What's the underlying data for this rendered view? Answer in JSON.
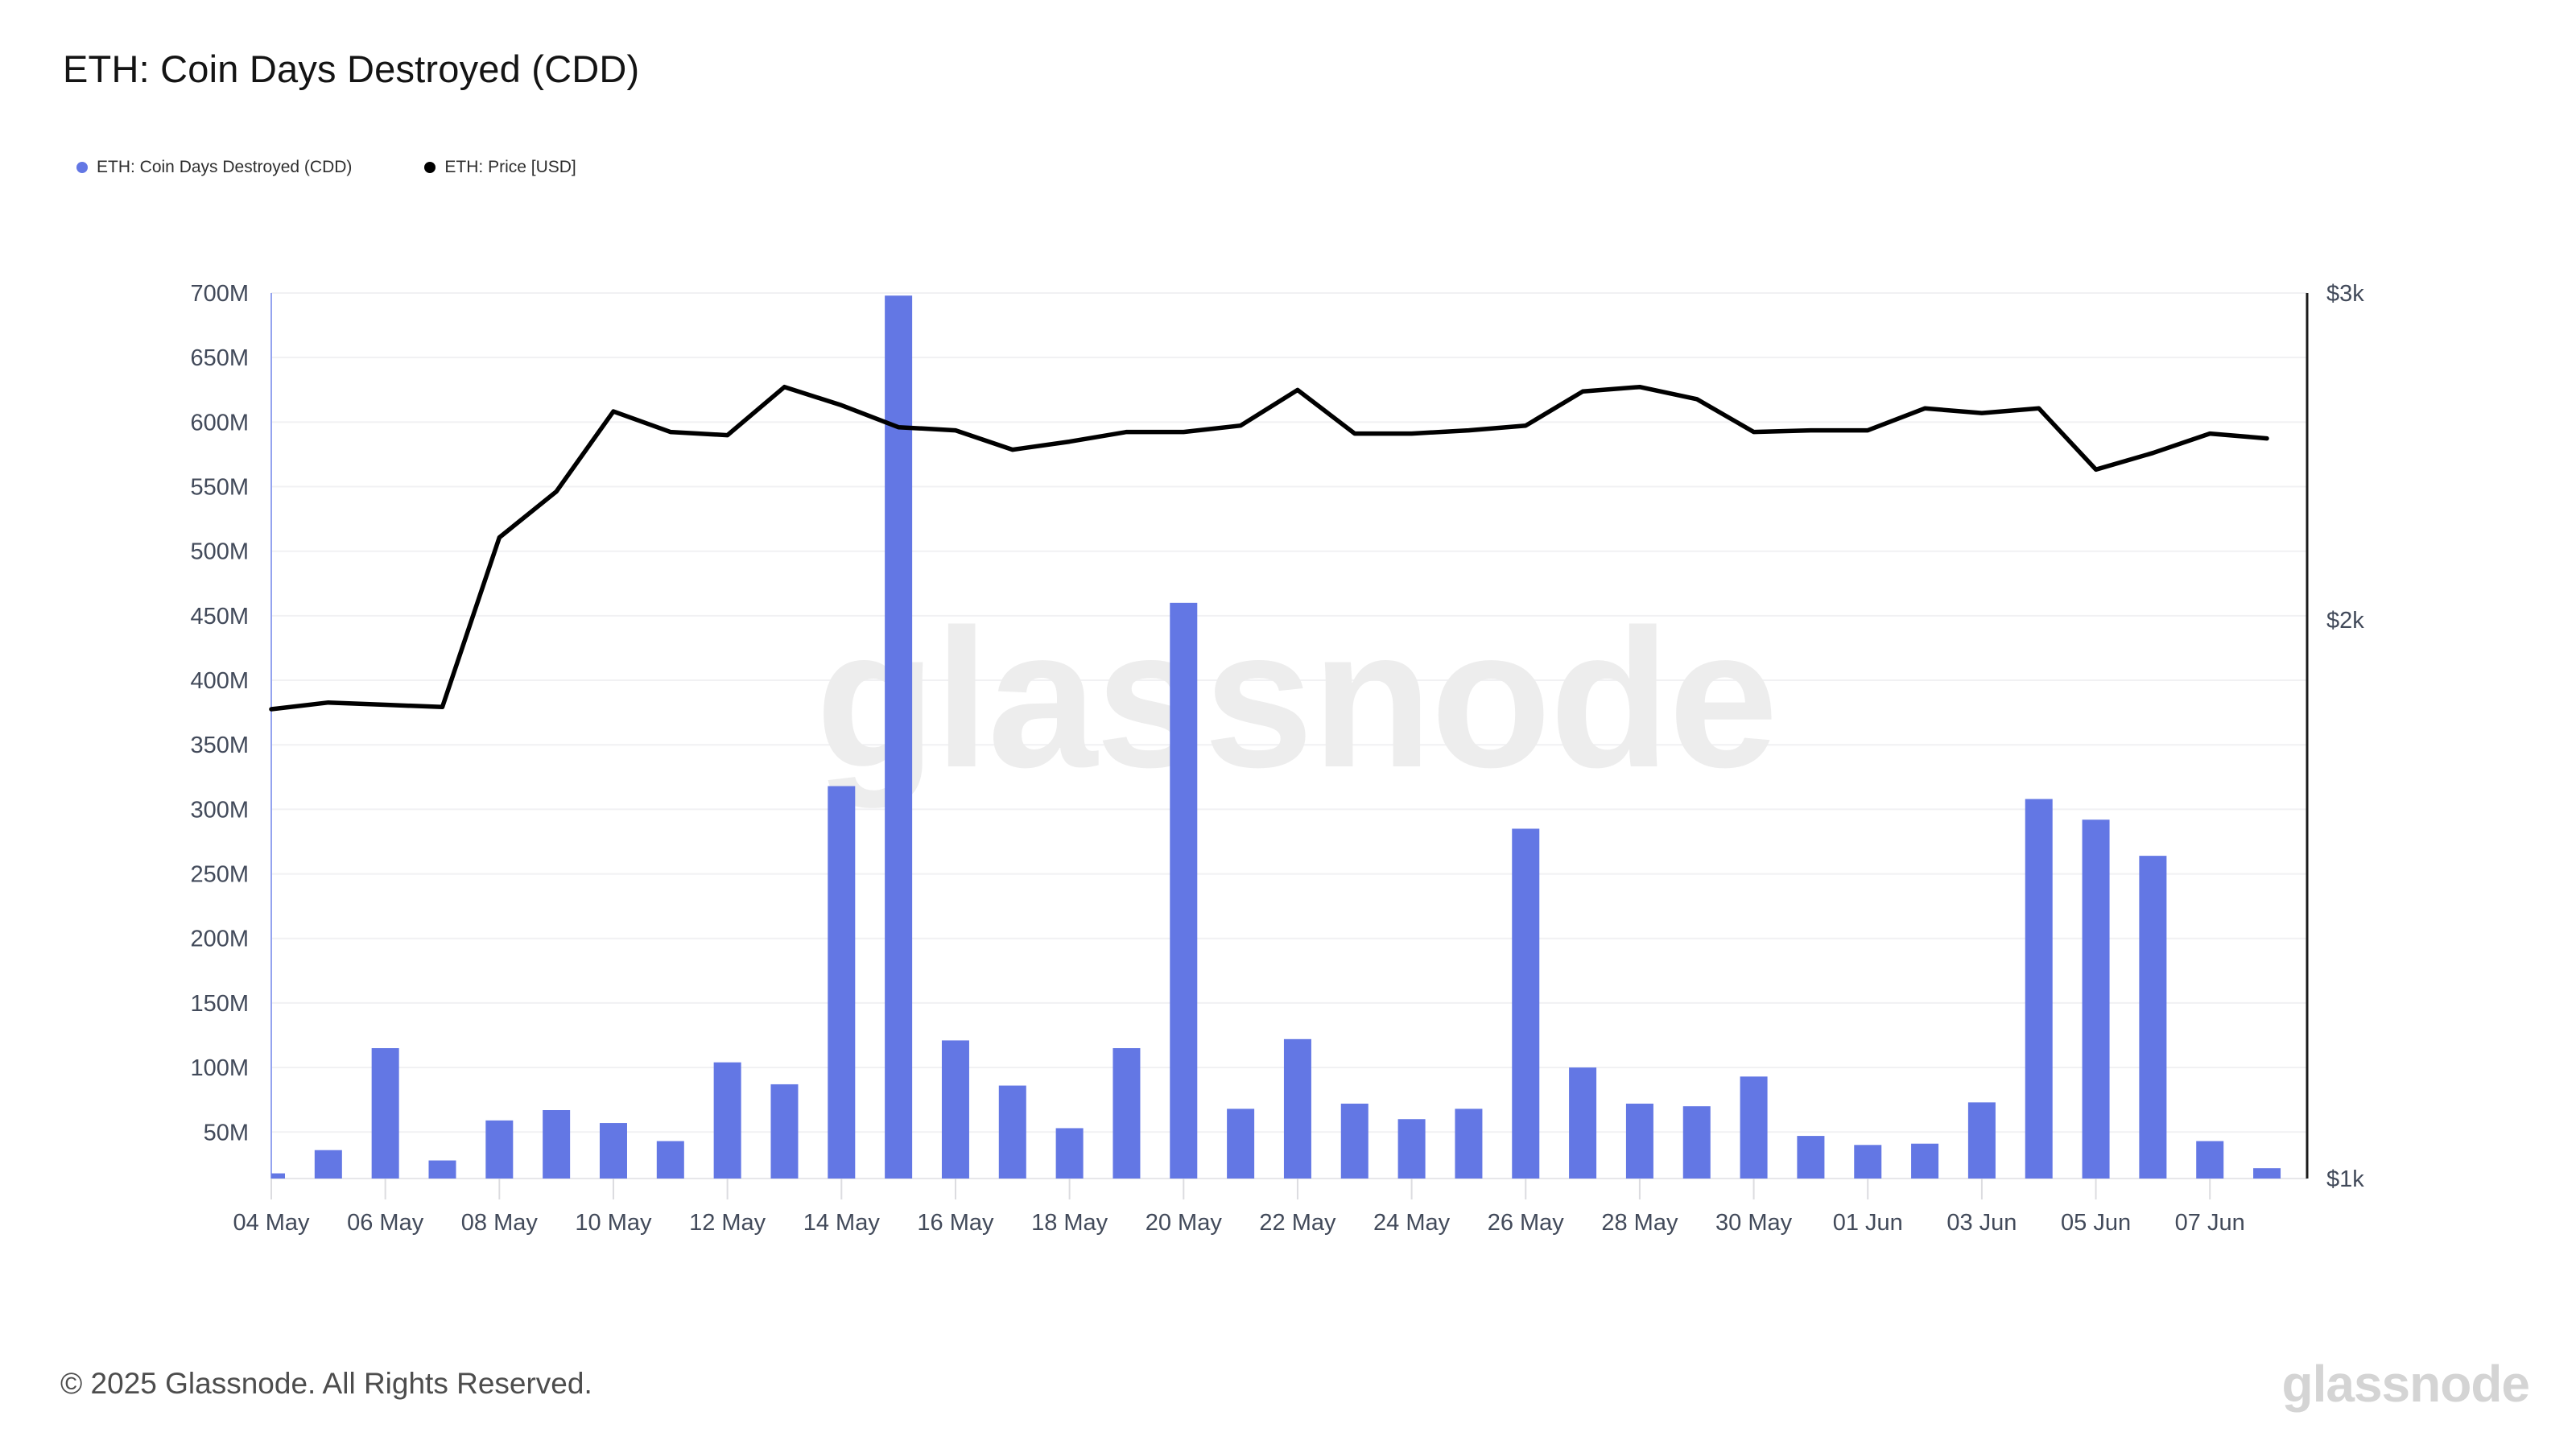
{
  "title": "ETH: Coin Days Destroyed (CDD)",
  "legend": [
    {
      "label": "ETH: Coin Days Destroyed (CDD)",
      "color": "#6377e4"
    },
    {
      "label": "ETH: Price [USD]",
      "color": "#000000"
    }
  ],
  "watermark": "glassnode",
  "footer": {
    "copyright": "© 2025 Glassnode. All Rights Reserved.",
    "brand": "glassnode"
  },
  "chart_data": {
    "type": "bar+line",
    "title": "ETH: Coin Days Destroyed (CDD)",
    "x": [
      "04 May",
      "05 May",
      "06 May",
      "07 May",
      "08 May",
      "09 May",
      "10 May",
      "11 May",
      "12 May",
      "13 May",
      "14 May",
      "15 May",
      "16 May",
      "17 May",
      "18 May",
      "19 May",
      "20 May",
      "21 May",
      "22 May",
      "23 May",
      "24 May",
      "25 May",
      "26 May",
      "27 May",
      "28 May",
      "29 May",
      "30 May",
      "31 May",
      "01 Jun",
      "02 Jun",
      "03 Jun",
      "04 Jun",
      "05 Jun",
      "06 Jun",
      "07 Jun",
      "08 Jun"
    ],
    "series": [
      {
        "name": "ETH: Coin Days Destroyed (CDD)",
        "type": "bar",
        "axis": "left",
        "color": "#6377e4",
        "unit": "M coin-days",
        "values": [
          18,
          36,
          115,
          28,
          59,
          67,
          57,
          43,
          104,
          87,
          318,
          698,
          121,
          86,
          53,
          115,
          460,
          68,
          122,
          72,
          60,
          68,
          285,
          100,
          72,
          70,
          93,
          47,
          40,
          41,
          73,
          308,
          292,
          264,
          43,
          22
        ]
      },
      {
        "name": "ETH: Price [USD]",
        "type": "line",
        "axis": "right",
        "color": "#000000",
        "unit": "USD",
        "values": [
          1790,
          1805,
          1800,
          1795,
          2215,
          2345,
          2590,
          2525,
          2515,
          2670,
          2610,
          2540,
          2530,
          2470,
          2495,
          2525,
          2525,
          2545,
          2660,
          2520,
          2520,
          2530,
          2545,
          2655,
          2670,
          2630,
          2525,
          2530,
          2530,
          2600,
          2585,
          2600,
          2410,
          2460,
          2520,
          2505
        ]
      }
    ],
    "left_axis": {
      "tick_labels": [
        "700M",
        "650M",
        "600M",
        "550M",
        "500M",
        "450M",
        "400M",
        "350M",
        "300M",
        "250M",
        "200M",
        "150M",
        "100M",
        "50M"
      ],
      "tick_values": [
        700,
        650,
        600,
        550,
        500,
        450,
        400,
        350,
        300,
        250,
        200,
        150,
        100,
        50
      ],
      "min": 14,
      "max": 700,
      "scale": "linear",
      "grid": true
    },
    "right_axis": {
      "tick_labels": [
        "$3k",
        "$2k",
        "$1k"
      ],
      "tick_values": [
        3000,
        2000,
        1000
      ],
      "min": 1000,
      "max": 3000,
      "scale": "log",
      "grid": false
    },
    "x_axis": {
      "tick_labels": [
        "04 May",
        "06 May",
        "08 May",
        "10 May",
        "12 May",
        "14 May",
        "16 May",
        "18 May",
        "20 May",
        "22 May",
        "24 May",
        "26 May",
        "28 May",
        "30 May",
        "01 Jun",
        "03 Jun",
        "05 Jun",
        "07 Jun"
      ],
      "tick_every": 2
    },
    "legend_position": "top-left",
    "colors": {
      "bar": "#6377e4",
      "line": "#000000",
      "gridline": "#f1f1f3",
      "left_axis_line": "#94a3ef",
      "right_axis_line": "#1b1b1b"
    }
  }
}
